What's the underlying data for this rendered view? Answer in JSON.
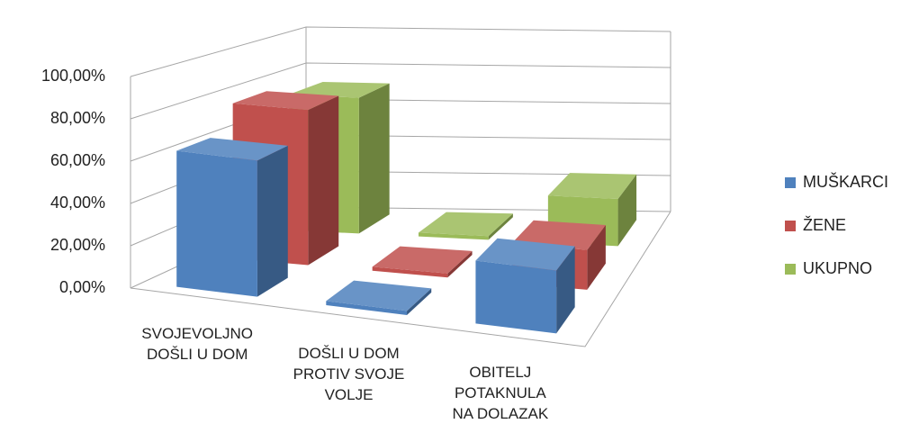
{
  "chart_data": {
    "type": "bar3d",
    "categories": [
      "SVOJEVOLJNO DOŠLI U DOM",
      "DOŠLI U DOM PROTIV SVOJE VOLJE",
      "OBITELJ POTAKNULA NA DOLAZAK"
    ],
    "series": [
      {
        "name": "MUŠKARCI",
        "color": "#4f81bd",
        "values": [
          65,
          2,
          30
        ]
      },
      {
        "name": "ŽENE",
        "color": "#c0504d",
        "values": [
          78,
          2,
          20
        ]
      },
      {
        "name": "UKUPNO",
        "color": "#9bbb59",
        "values": [
          72,
          2,
          25
        ]
      }
    ],
    "ylim": [
      0,
      100
    ],
    "yticks": [
      {
        "value": 0,
        "label": "0,00%"
      },
      {
        "value": 20,
        "label": "20,00%"
      },
      {
        "value": 40,
        "label": "40,00%"
      },
      {
        "value": 60,
        "label": "60,00%"
      },
      {
        "value": 80,
        "label": "80,00%"
      },
      {
        "value": 100,
        "label": "100,00%"
      }
    ],
    "grid": true,
    "legend": "right"
  }
}
